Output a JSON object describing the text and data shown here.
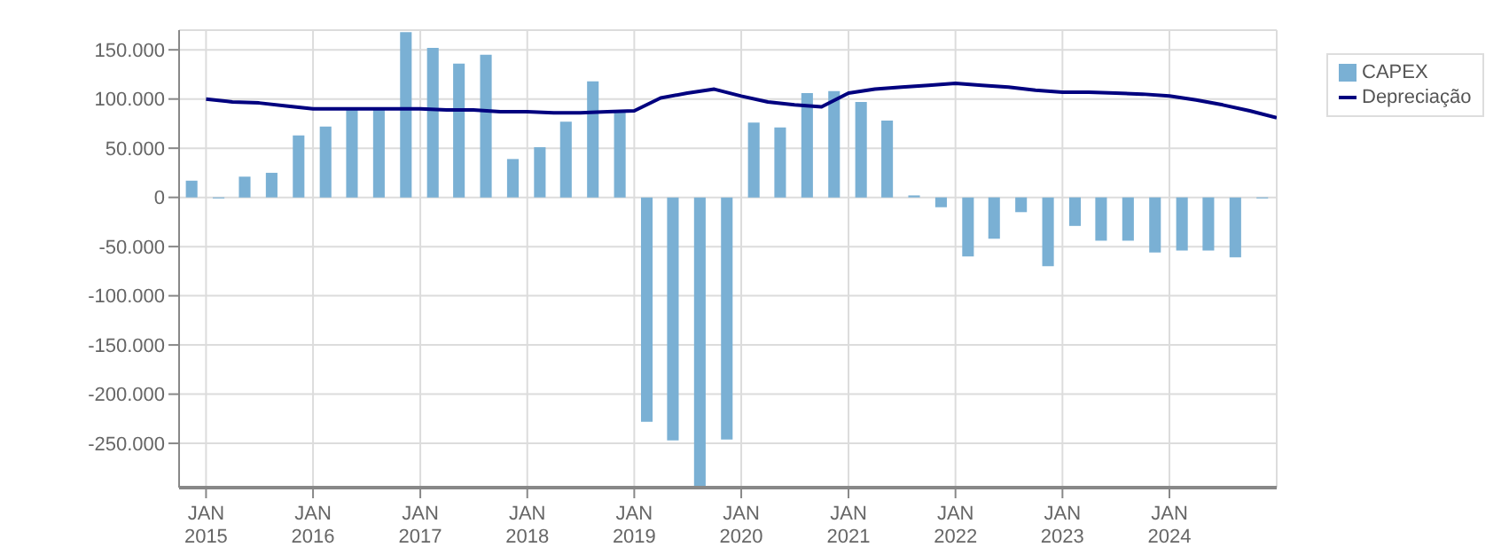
{
  "chart_data": {
    "type": "bar",
    "series": [
      {
        "name": "CAPEX",
        "color": "#7ab0d4",
        "x": [
          "2014-11-15",
          "2015-02-15",
          "2015-05-15",
          "2015-08-15",
          "2015-11-15",
          "2016-02-15",
          "2016-05-15",
          "2016-08-15",
          "2016-11-15",
          "2017-02-15",
          "2017-05-15",
          "2017-08-15",
          "2017-11-15",
          "2018-02-15",
          "2018-05-15",
          "2018-08-15",
          "2018-11-15",
          "2019-02-15",
          "2019-05-15",
          "2019-08-15",
          "2019-11-15",
          "2020-02-15",
          "2020-05-15",
          "2020-08-15",
          "2020-11-15",
          "2021-02-15",
          "2021-05-15",
          "2021-08-15",
          "2021-11-15",
          "2022-02-15",
          "2022-05-15",
          "2022-08-15",
          "2022-11-15",
          "2023-02-15",
          "2023-05-15",
          "2023-08-15",
          "2023-11-15",
          "2024-02-15",
          "2024-05-15",
          "2024-08-15",
          "2024-11-15"
        ],
        "values": [
          17000,
          -1000,
          21000,
          25000,
          63000,
          72000,
          90000,
          90000,
          168000,
          152000,
          136000,
          145000,
          39000,
          51000,
          77000,
          118000,
          87000,
          -228000,
          -247000,
          -295000,
          -246000,
          76000,
          71000,
          106000,
          108000,
          97000,
          78000,
          2000,
          -10000,
          -60000,
          -42000,
          -15000,
          -70000,
          -29000,
          -44000,
          -44000,
          -56000,
          -54000,
          -54000,
          -61000,
          -1000
        ]
      },
      {
        "name": "Depreciação",
        "type": "line",
        "color": "#00007f",
        "x": [
          "2015-01",
          "2015-04",
          "2015-07",
          "2015-10",
          "2016-01",
          "2016-04",
          "2016-07",
          "2016-10",
          "2017-01",
          "2017-04",
          "2017-07",
          "2017-10",
          "2018-01",
          "2018-04",
          "2018-07",
          "2018-10",
          "2019-01",
          "2019-04",
          "2019-07",
          "2019-10",
          "2020-01",
          "2020-04",
          "2020-07",
          "2020-10",
          "2021-01",
          "2021-04",
          "2021-07",
          "2021-10",
          "2022-01",
          "2022-04",
          "2022-07",
          "2022-10",
          "2023-01",
          "2023-04",
          "2023-07",
          "2023-10",
          "2024-01",
          "2024-04",
          "2024-07",
          "2024-10",
          "2025-01"
        ],
        "values": [
          100000,
          97000,
          96000,
          93000,
          90000,
          90000,
          90000,
          90000,
          90000,
          89000,
          89000,
          87000,
          87000,
          86000,
          86000,
          87000,
          88000,
          101000,
          106000,
          110000,
          103000,
          97000,
          94000,
          92000,
          106000,
          110000,
          112000,
          114000,
          116000,
          114000,
          112000,
          109000,
          107000,
          107000,
          106000,
          105000,
          103000,
          99000,
          94000,
          88000,
          81000
        ]
      }
    ],
    "xlim": [
      "2014-10",
      "2025-01"
    ],
    "xticks": [
      {
        "value": "2015-01",
        "label": "JAN\n2015"
      },
      {
        "value": "2016-01",
        "label": "JAN\n2016"
      },
      {
        "value": "2017-01",
        "label": "JAN\n2017"
      },
      {
        "value": "2018-01",
        "label": "JAN\n2018"
      },
      {
        "value": "2019-01",
        "label": "JAN\n2019"
      },
      {
        "value": "2020-01",
        "label": "JAN\n2020"
      },
      {
        "value": "2021-01",
        "label": "JAN\n2021"
      },
      {
        "value": "2022-01",
        "label": "JAN\n2022"
      },
      {
        "value": "2023-01",
        "label": "JAN\n2023"
      },
      {
        "value": "2024-01",
        "label": "JAN\n2024"
      }
    ],
    "ylim": [
      -295000,
      170000
    ],
    "yticks": [
      {
        "value": 150000,
        "label": "150.000"
      },
      {
        "value": 100000,
        "label": "100.000"
      },
      {
        "value": 50000,
        "label": "50.000"
      },
      0,
      {
        "value": -50000,
        "label": "-50.000"
      },
      {
        "value": -100000,
        "label": "-100.000"
      },
      {
        "value": -150000,
        "label": "-150.000"
      },
      {
        "value": -200000,
        "label": "-200.000"
      },
      {
        "value": -250000,
        "label": "-250.000"
      }
    ],
    "grid": true,
    "legend": "top right"
  }
}
